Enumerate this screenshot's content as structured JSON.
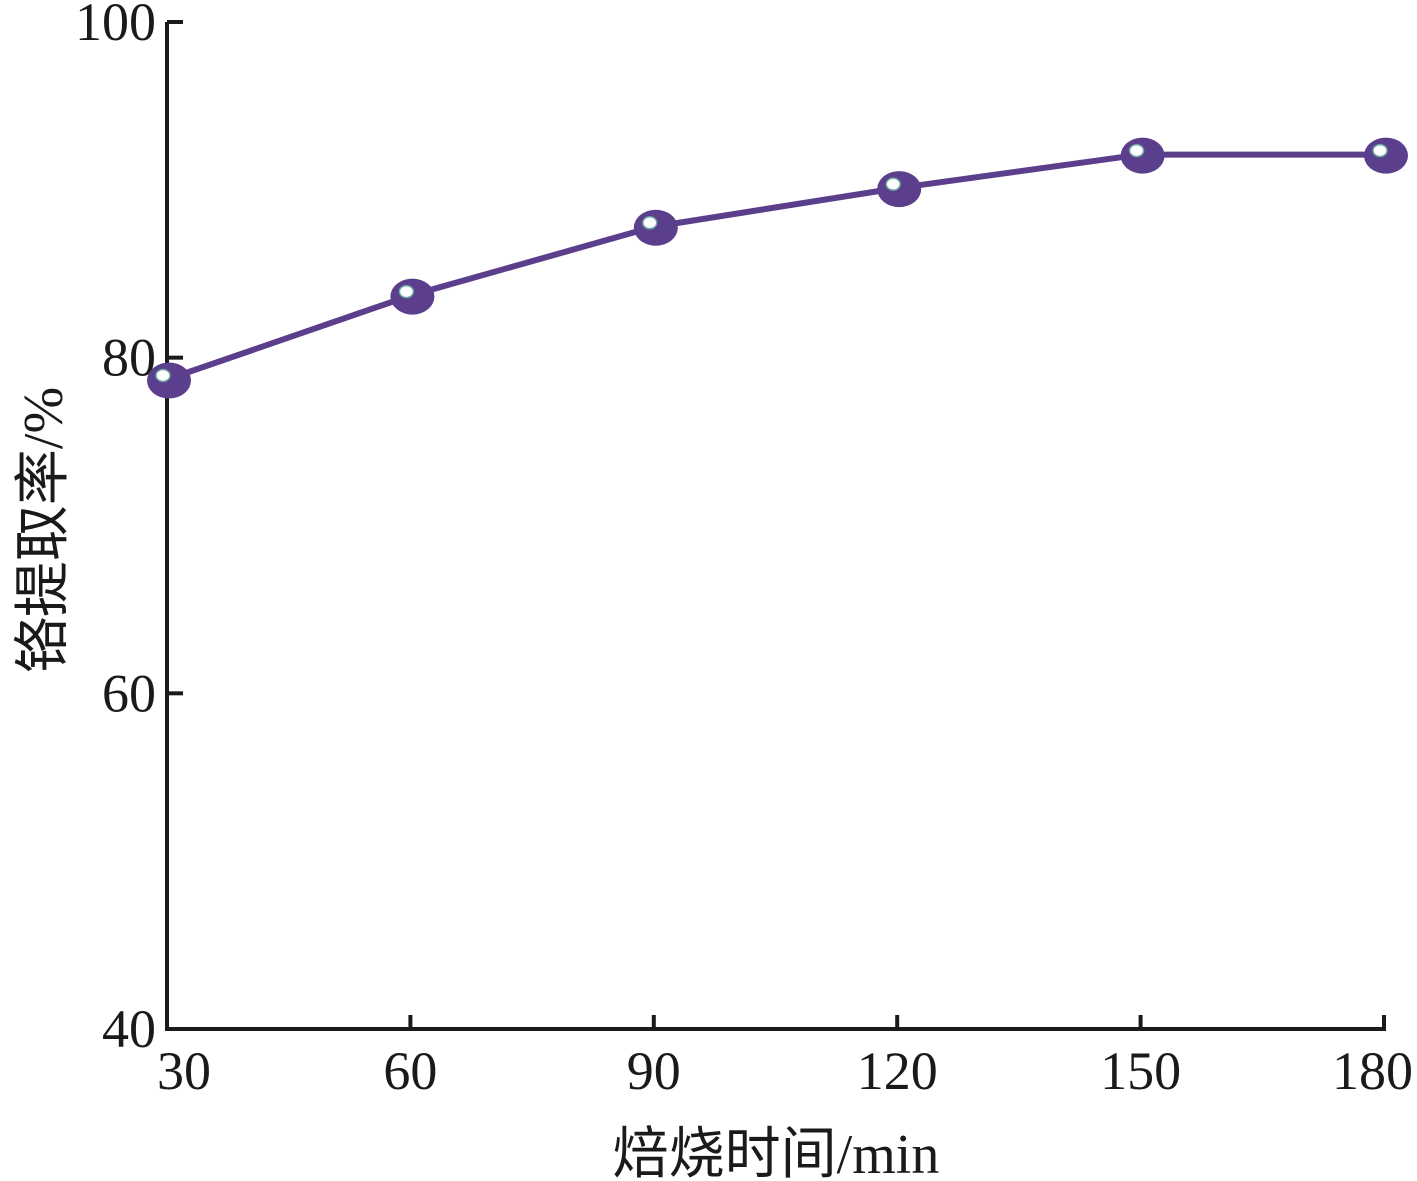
{
  "chart_data": {
    "type": "line",
    "title": "",
    "xlabel": "焙烧时间/min",
    "ylabel": "铬提取率/%",
    "x": [
      30,
      60,
      90,
      120,
      150,
      180
    ],
    "xticks": [
      30,
      60,
      90,
      120,
      150,
      180
    ],
    "yticks": [
      40,
      60,
      80,
      100
    ],
    "xlim": [
      30,
      180
    ],
    "ylim": [
      40,
      100
    ],
    "grid": false,
    "series": [
      {
        "name": "",
        "color": "#5b3f8c",
        "marker": "ellipse-with-white-highlight",
        "values": [
          78.7,
          83.7,
          87.8,
          90.1,
          92.1,
          92.1
        ]
      }
    ]
  }
}
